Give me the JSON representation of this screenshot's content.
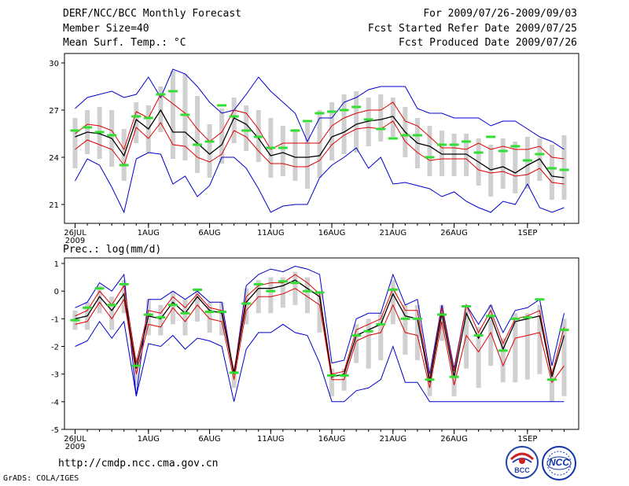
{
  "header": {
    "title": "DERF/NCC/BCC Monthly Forecast",
    "member_size": "Member Size=40",
    "variable": "Mean Surf. Temp.: °C",
    "period": "For 2009/07/26-2009/09/03",
    "start_date": "Fcst Started Refer Date 2009/07/25",
    "produced_date": "Fcst Produced Date 2009/07/26"
  },
  "footer": {
    "url": "http://cmdp.ncc.cma.gov.cn",
    "credit": "GrADS: COLA/IGES",
    "logo_bcc": "BCC",
    "logo_ncc": "NCC"
  },
  "colors": {
    "envelope": "#0000cc",
    "spread": "#dd0000",
    "mean": "#000000",
    "box": "#d0d0d0",
    "marker": "#33dd33"
  },
  "chart_data": [
    {
      "type": "line",
      "title": "Mean Surf. Temp.: °C",
      "x_tick_labels": [
        "26JUL",
        "1AUG",
        "6AUG",
        "11AUG",
        "16AUG",
        "21AUG",
        "26AUG",
        "1SEP"
      ],
      "x_year_label": "2009",
      "x_tick_days": [
        0,
        6,
        11,
        16,
        21,
        26,
        31,
        37
      ],
      "days": 40,
      "ylim": [
        19.8,
        30.6
      ],
      "y_ticks": [
        21,
        24,
        27,
        30
      ],
      "series": [
        {
          "name": "max",
          "values": [
            27.1,
            27.8,
            28.0,
            28.2,
            27.8,
            28.0,
            29.1,
            27.8,
            29.6,
            29.3,
            28.5,
            27.5,
            26.8,
            27.0,
            28.0,
            29.1,
            28.2,
            27.5,
            26.8,
            25.0,
            26.5,
            26.5,
            27.5,
            27.8,
            28.3,
            28.5,
            28.5,
            28.5,
            27.1,
            26.8,
            26.8,
            26.5,
            26.5,
            26.5,
            26.0,
            26.3,
            26.3,
            25.8,
            25.3,
            25.0,
            24.5
          ]
        },
        {
          "name": "upper",
          "values": [
            25.5,
            26.1,
            26.0,
            25.7,
            24.5,
            26.9,
            26.5,
            28.0,
            27.4,
            26.8,
            25.8,
            25.0,
            25.6,
            27.0,
            26.8,
            25.8,
            24.5,
            24.9,
            24.9,
            24.9,
            24.9,
            26.0,
            26.5,
            26.8,
            27.0,
            27.0,
            27.5,
            26.3,
            26.0,
            25.3,
            24.6,
            24.6,
            24.5,
            24.9,
            24.5,
            24.7,
            24.5,
            24.5,
            24.7,
            24.0,
            23.9
          ]
        },
        {
          "name": "mean",
          "values": [
            25.3,
            25.6,
            25.5,
            25.2,
            24.1,
            26.4,
            25.8,
            27.0,
            25.6,
            25.6,
            24.9,
            24.2,
            24.8,
            26.5,
            26.1,
            25.2,
            24.1,
            24.3,
            24.0,
            24.0,
            24.1,
            25.3,
            25.6,
            26.1,
            26.3,
            26.4,
            26.6,
            25.6,
            24.9,
            24.7,
            24.2,
            24.2,
            24.2,
            23.7,
            23.2,
            23.4,
            23.0,
            23.5,
            23.9,
            22.8,
            22.7
          ]
        },
        {
          "name": "lower",
          "values": [
            24.5,
            25.1,
            24.8,
            24.5,
            23.5,
            25.9,
            25.2,
            26.2,
            24.8,
            24.7,
            24.0,
            23.7,
            24.2,
            25.7,
            25.3,
            24.4,
            23.6,
            23.6,
            23.4,
            23.4,
            23.8,
            24.8,
            25.4,
            25.8,
            25.9,
            25.8,
            26.3,
            25.0,
            24.3,
            23.8,
            23.9,
            23.9,
            23.9,
            23.2,
            23.0,
            23.1,
            22.8,
            22.9,
            23.3,
            22.4,
            22.3
          ]
        },
        {
          "name": "min",
          "values": [
            22.5,
            23.9,
            23.5,
            22.1,
            20.5,
            23.9,
            24.3,
            24.2,
            22.3,
            22.8,
            21.5,
            22.2,
            24.0,
            24.0,
            23.3,
            22.0,
            20.5,
            20.9,
            21.0,
            21.0,
            22.7,
            23.5,
            24.0,
            24.6,
            23.3,
            24.0,
            22.3,
            22.4,
            22.2,
            22.0,
            21.5,
            21.8,
            21.2,
            20.8,
            20.5,
            21.2,
            21.0,
            22.3,
            20.8,
            20.5,
            20.8
          ]
        }
      ],
      "box_low": [
        23.3,
        24.2,
        23.9,
        23.4,
        22.5,
        24.9,
        24.3,
        25.6,
        23.9,
        23.8,
        23.0,
        22.7,
        23.6,
        24.9,
        24.4,
        23.7,
        22.7,
        22.8,
        22.5,
        22.0,
        22.7,
        23.8,
        24.2,
        24.3,
        24.7,
        25.0,
        25.3,
        24.0,
        23.3,
        22.8,
        22.8,
        22.8,
        22.8,
        22.2,
        21.5,
        22.0,
        21.7,
        22.0,
        22.5,
        21.3,
        21.3
      ],
      "box_high": [
        26.5,
        27.0,
        27.2,
        27.0,
        25.8,
        27.5,
        27.3,
        28.5,
        29.5,
        29.3,
        27.9,
        26.1,
        27.1,
        27.8,
        27.3,
        27.0,
        26.5,
        26.0,
        25.8,
        26.2,
        27.0,
        27.5,
        28.0,
        28.2,
        27.8,
        28.0,
        27.8,
        27.2,
        26.5,
        26.0,
        25.7,
        25.5,
        25.5,
        25.2,
        24.8,
        25.2,
        25.0,
        25.3,
        25.2,
        24.8,
        25.4
      ],
      "marker": [
        25.7,
        25.9,
        25.6,
        25.4,
        23.5,
        26.6,
        26.5,
        28.0,
        28.2,
        26.7,
        24.8,
        25.0,
        27.3,
        26.6,
        25.7,
        25.3,
        24.6,
        24.6,
        25.7,
        26.3,
        26.8,
        26.9,
        27.0,
        27.2,
        26.4,
        25.8,
        25.2,
        25.4,
        25.4,
        24.0,
        24.8,
        24.8,
        25.0,
        24.3,
        25.3,
        24.4,
        24.7,
        23.8,
        24.2,
        23.3,
        23.2
      ]
    },
    {
      "type": "line",
      "title": "Prec.: log(mm/d)",
      "x_tick_labels": [
        "26JUL",
        "1AUG",
        "6AUG",
        "11AUG",
        "16AUG",
        "21AUG",
        "26AUG",
        "1SEP"
      ],
      "x_year_label": "2009",
      "x_tick_days": [
        0,
        6,
        11,
        16,
        21,
        26,
        31,
        37
      ],
      "days": 40,
      "ylim": [
        -5,
        1.2
      ],
      "y_ticks": [
        -5,
        -4,
        -3,
        -2,
        -1,
        0,
        1
      ],
      "series": [
        {
          "name": "max",
          "values": [
            -0.6,
            -0.4,
            0.3,
            0.0,
            0.6,
            -3.8,
            -0.3,
            -0.3,
            0.0,
            -0.3,
            0.0,
            -0.4,
            -0.4,
            -3.0,
            0.2,
            0.6,
            0.8,
            0.7,
            0.9,
            0.8,
            0.6,
            -2.6,
            -2.5,
            -1.0,
            -0.8,
            -0.8,
            0.6,
            -0.5,
            -0.3,
            -3.0,
            -0.5,
            -2.8,
            -0.5,
            -1.2,
            -0.5,
            -1.5,
            -0.7,
            -0.6,
            -0.3,
            -2.7,
            -0.8
          ]
        },
        {
          "name": "upper",
          "values": [
            -0.9,
            -0.7,
            0.0,
            -0.5,
            0.2,
            -2.6,
            -0.7,
            -0.8,
            -0.2,
            -0.6,
            -0.1,
            -0.6,
            -0.7,
            -2.9,
            -0.2,
            0.2,
            0.3,
            0.3,
            0.6,
            0.3,
            -0.1,
            -3.0,
            -2.9,
            -1.4,
            -1.2,
            -1.0,
            0.1,
            -0.7,
            -0.7,
            -3.2,
            -0.6,
            -2.9,
            -0.5,
            -1.5,
            -0.7,
            -1.9,
            -1.0,
            -0.9,
            -0.7,
            -3.0,
            -1.3
          ]
        },
        {
          "name": "mean",
          "values": [
            -1.0,
            -0.9,
            -0.2,
            -0.7,
            -0.1,
            -2.8,
            -0.9,
            -1.0,
            -0.4,
            -0.8,
            -0.2,
            -0.7,
            -0.8,
            -3.0,
            -0.4,
            0.1,
            0.1,
            0.2,
            0.4,
            0.1,
            -0.2,
            -3.1,
            -3.0,
            -1.6,
            -1.4,
            -1.2,
            -0.1,
            -0.9,
            -1.0,
            -3.3,
            -0.8,
            -3.1,
            -0.8,
            -1.7,
            -0.9,
            -2.1,
            -1.1,
            -1.0,
            -0.9,
            -3.1,
            -1.6
          ]
        },
        {
          "name": "lower",
          "values": [
            -1.2,
            -1.1,
            -0.4,
            -1.0,
            -0.3,
            -3.0,
            -1.2,
            -1.3,
            -0.6,
            -1.1,
            -0.5,
            -1.0,
            -1.1,
            -3.2,
            -0.7,
            -0.2,
            -0.2,
            -0.1,
            0.1,
            -0.2,
            -0.5,
            -3.2,
            -3.2,
            -1.8,
            -1.6,
            -1.5,
            -0.5,
            -1.5,
            -1.6,
            -3.5,
            -1.1,
            -3.4,
            -1.6,
            -2.2,
            -1.5,
            -2.7,
            -1.7,
            -1.6,
            -1.5,
            -3.3,
            -2.7
          ]
        },
        {
          "name": "min",
          "values": [
            -2.0,
            -1.8,
            -1.1,
            -1.7,
            -1.1,
            -3.8,
            -1.9,
            -2.0,
            -1.6,
            -2.1,
            -1.7,
            -1.8,
            -2.0,
            -4.0,
            -2.1,
            -1.5,
            -1.5,
            -1.2,
            -1.5,
            -1.6,
            -2.6,
            -4.0,
            -4.0,
            -3.6,
            -3.5,
            -3.2,
            -2.0,
            -3.3,
            -3.3,
            -4.0,
            -4.0,
            -4.0,
            -4.0,
            -4.0,
            -4.0,
            -4.0,
            -4.0,
            -4.0,
            -4.0,
            -4.0,
            -4.0
          ]
        }
      ],
      "box_low": [
        -1.4,
        -1.4,
        -0.8,
        -1.4,
        -0.8,
        -3.4,
        -1.6,
        -1.6,
        -1.2,
        -1.6,
        -1.1,
        -1.5,
        -1.6,
        -3.5,
        -1.2,
        -0.8,
        -0.8,
        -0.6,
        -0.5,
        -0.8,
        -1.5,
        -3.8,
        -3.6,
        -2.6,
        -2.8,
        -2.5,
        -1.2,
        -2.3,
        -2.5,
        -3.8,
        -1.8,
        -3.8,
        -2.8,
        -3.5,
        -2.7,
        -3.3,
        -3.3,
        -3.2,
        -3.0,
        -4.0,
        -3.8
      ],
      "box_high": [
        -0.7,
        -0.4,
        0.2,
        -0.2,
        0.4,
        -2.4,
        -0.3,
        -0.5,
        0.0,
        -0.3,
        0.1,
        -0.4,
        -0.4,
        -2.8,
        0.1,
        0.4,
        0.5,
        0.5,
        0.7,
        0.5,
        0.0,
        -2.8,
        -2.8,
        -1.2,
        -1.0,
        -0.8,
        0.4,
        -0.5,
        -0.5,
        -3.0,
        -0.5,
        -2.7,
        -0.5,
        -1.3,
        -0.5,
        -1.7,
        -0.8,
        -0.8,
        -0.5,
        -2.8,
        -1.0
      ],
      "marker": [
        -1.05,
        -0.6,
        0.1,
        -0.5,
        0.25,
        -2.7,
        -0.85,
        -0.95,
        -0.5,
        -0.8,
        0.05,
        -0.75,
        -0.75,
        -2.95,
        -0.45,
        0.25,
        0.0,
        0.35,
        0.3,
        0.0,
        -0.05,
        -3.05,
        -3.05,
        -1.6,
        -1.45,
        -1.2,
        0.05,
        -1.0,
        -1.0,
        -3.2,
        -0.85,
        -3.1,
        -0.55,
        -1.6,
        -0.9,
        -2.15,
        -1.0,
        -0.95,
        -0.3,
        -3.2,
        -1.4
      ]
    }
  ]
}
